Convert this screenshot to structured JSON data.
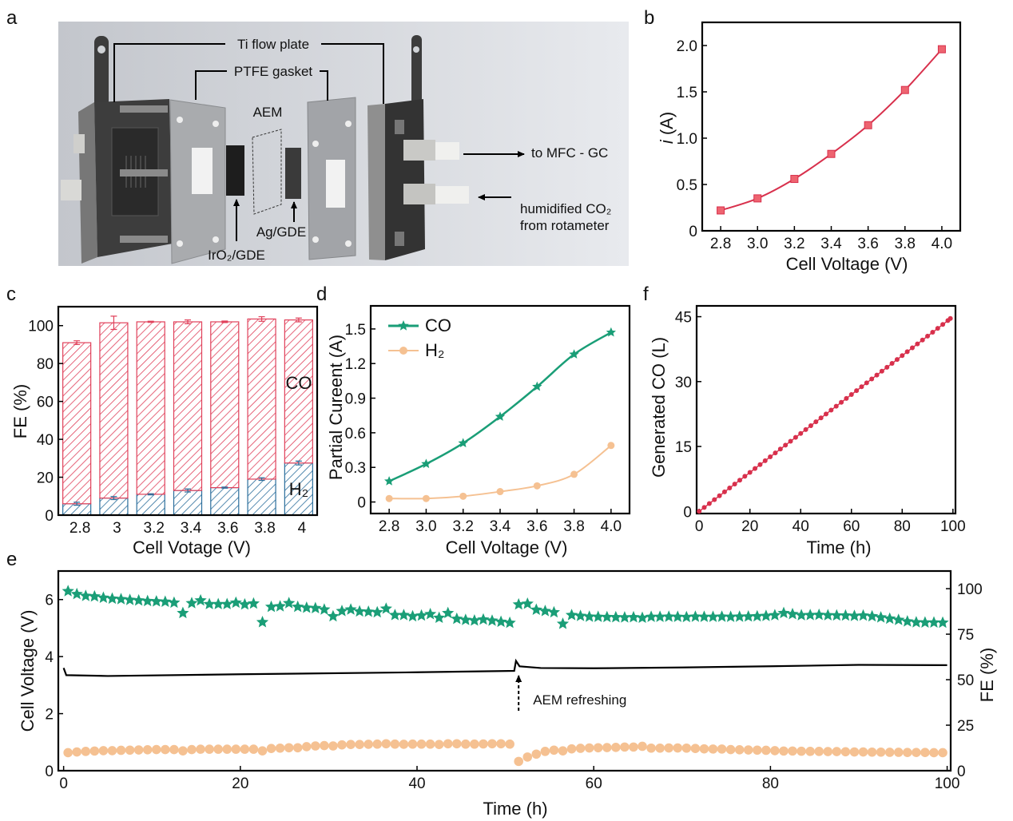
{
  "panel_labels": {
    "a": "a",
    "b": "b",
    "c": "c",
    "d": "d",
    "e": "e",
    "f": "f"
  },
  "diagram": {
    "ti_flow_plate": "Ti flow plate",
    "ptfe_gasket": "PTFE gasket",
    "aem": "AEM",
    "iro2_gde": "IrO₂/GDE",
    "ag_gde": "Ag/GDE",
    "outlet": "to MFC - GC",
    "inlet_line1": "humidified CO₂",
    "inlet_line2": "from rotameter"
  },
  "colors": {
    "current": "#d8304c",
    "co": "#1a9e77",
    "h2": "#f5c192",
    "co_bar": "#e0405a",
    "h2_bar": "#2b6e9c",
    "voltage": "#000000",
    "diagram_bg": "#d5d8dd"
  },
  "chart_data": [
    {
      "id": "b",
      "type": "line",
      "marker": "square",
      "x": [
        2.8,
        3.0,
        3.2,
        3.4,
        3.6,
        3.8,
        4.0
      ],
      "y": [
        0.22,
        0.35,
        0.56,
        0.83,
        1.14,
        1.52,
        1.96
      ],
      "xlabel": "Cell Voltage (V)",
      "ylabel_italic": "i",
      "ylabel": " (A)",
      "xlim": [
        2.7,
        4.1
      ],
      "ylim": [
        0,
        2.25
      ],
      "xticks": [
        2.8,
        3.0,
        3.2,
        3.4,
        3.6,
        3.8,
        4.0
      ],
      "xtick_labels": [
        "2.8",
        "3.0",
        "3.2",
        "3.4",
        "3.6",
        "3.8",
        "4.0"
      ],
      "yticks": [
        0,
        0.5,
        1.0,
        1.5,
        2.0
      ],
      "ytick_labels": [
        "0",
        "0.5",
        "1.0",
        "1.5",
        "2.0"
      ],
      "grid": false
    },
    {
      "id": "c",
      "type": "bar",
      "stacked": true,
      "hatched": true,
      "categories": [
        "2.8",
        "3",
        "3.2",
        "3.4",
        "3.6",
        "3.8",
        "4"
      ],
      "series": [
        {
          "name": "H₂",
          "values": [
            6,
            9,
            11,
            13,
            14.5,
            19,
            27.5
          ],
          "errors": [
            0.8,
            0.8,
            0.3,
            0.8,
            0.3,
            0.7,
            1.0
          ]
        },
        {
          "name": "CO",
          "values": [
            85,
            92.5,
            91,
            89,
            87.5,
            84.5,
            75.5
          ],
          "errors": [
            1.0,
            3.5,
            0.3,
            1.0,
            0.4,
            1.2,
            1.0
          ]
        }
      ],
      "xlabel": "Cell Votage (V)",
      "ylabel": "FE (%)",
      "ylim": [
        0,
        110
      ],
      "yticks": [
        0,
        20,
        40,
        60,
        80,
        100
      ],
      "ytick_labels": [
        "0",
        "20",
        "40",
        "60",
        "80",
        "100"
      ],
      "grid": false
    },
    {
      "id": "d",
      "type": "line",
      "x": [
        2.8,
        3.0,
        3.2,
        3.4,
        3.6,
        3.8,
        4.0
      ],
      "series": [
        {
          "name": "CO",
          "marker": "star",
          "values": [
            0.18,
            0.33,
            0.51,
            0.74,
            1.0,
            1.28,
            1.47
          ]
        },
        {
          "name": "H₂",
          "marker": "circle",
          "values": [
            0.03,
            0.03,
            0.05,
            0.09,
            0.14,
            0.24,
            0.49
          ]
        }
      ],
      "xlabel": "Cell Voltage (V)",
      "ylabel": "Partial Cureent (A)",
      "xlim": [
        2.7,
        4.1
      ],
      "ylim": [
        -0.1,
        1.7
      ],
      "xticks": [
        2.8,
        3.0,
        3.2,
        3.4,
        3.6,
        3.8,
        4.0
      ],
      "xtick_labels": [
        "2.8",
        "3.0",
        "3.2",
        "3.4",
        "3.6",
        "3.8",
        "4.0"
      ],
      "yticks": [
        0,
        0.3,
        0.6,
        0.9,
        1.2,
        1.5
      ],
      "ytick_labels": [
        "0",
        "0.3",
        "0.6",
        "0.9",
        "1.2",
        "1.5"
      ],
      "legend": "top-left",
      "grid": false
    },
    {
      "id": "f",
      "type": "scatter",
      "connected": true,
      "x": [
        0,
        2,
        4,
        6,
        8,
        10,
        12,
        14,
        16,
        18,
        20,
        22,
        24,
        26,
        28,
        30,
        32,
        34,
        36,
        38,
        40,
        42,
        44,
        46,
        48,
        50,
        52,
        54,
        56,
        58,
        60,
        62,
        64,
        66,
        68,
        70,
        72,
        74,
        76,
        78,
        80,
        82,
        84,
        86,
        88,
        90,
        92,
        94,
        96,
        98,
        99
      ],
      "y": [
        0,
        0.9,
        1.8,
        2.7,
        3.6,
        4.5,
        5.4,
        6.3,
        7.2,
        8.1,
        9.0,
        9.9,
        10.8,
        11.7,
        12.6,
        13.5,
        14.4,
        15.3,
        16.2,
        17.1,
        18.0,
        18.9,
        19.8,
        20.7,
        21.6,
        22.5,
        23.4,
        24.3,
        25.2,
        26.1,
        27.0,
        27.9,
        28.8,
        29.7,
        30.6,
        31.5,
        32.4,
        33.3,
        34.2,
        35.1,
        36.0,
        36.9,
        37.8,
        38.7,
        39.6,
        40.5,
        41.4,
        42.3,
        43.2,
        44.1,
        44.6
      ],
      "xlabel": "Time (h)",
      "ylabel": "Generated CO (L)",
      "xlim": [
        -1,
        101
      ],
      "ylim": [
        -0.5,
        47.5
      ],
      "xticks": [
        0,
        20,
        40,
        60,
        80,
        100
      ],
      "xtick_labels": [
        "0",
        "20",
        "40",
        "60",
        "80",
        "100"
      ],
      "yticks": [
        0,
        15,
        30,
        45
      ],
      "ytick_labels": [
        "0",
        "15",
        "30",
        "45"
      ],
      "grid": false
    },
    {
      "id": "e",
      "type": "line+scatter",
      "dual_axis": true,
      "voltage": {
        "time_h": [
          0,
          0.3,
          5,
          20,
          40,
          51,
          51.2,
          51.6,
          54,
          60,
          70,
          80,
          90,
          100
        ],
        "values": [
          3.6,
          3.35,
          3.32,
          3.38,
          3.45,
          3.5,
          3.85,
          3.66,
          3.6,
          3.59,
          3.62,
          3.66,
          3.71,
          3.7
        ]
      },
      "time_h": [
        0.5,
        1.5,
        2.5,
        3.5,
        4.5,
        5.5,
        6.5,
        7.5,
        8.5,
        9.5,
        10.5,
        11.5,
        12.5,
        13.5,
        14.5,
        15.5,
        16.5,
        17.5,
        18.5,
        19.5,
        20.5,
        21.5,
        22.5,
        23.5,
        24.5,
        25.5,
        26.5,
        27.5,
        28.5,
        29.5,
        30.5,
        31.5,
        32.5,
        33.5,
        34.5,
        35.5,
        36.5,
        37.5,
        38.5,
        39.5,
        40.5,
        41.5,
        42.5,
        43.5,
        44.5,
        45.5,
        46.5,
        47.5,
        48.5,
        49.5,
        50.5,
        51.5,
        52.5,
        53.5,
        54.5,
        55.5,
        56.5,
        57.5,
        58.5,
        59.5,
        60.5,
        61.5,
        62.5,
        63.5,
        64.5,
        65.5,
        66.5,
        67.5,
        68.5,
        69.5,
        70.5,
        71.5,
        72.5,
        73.5,
        74.5,
        75.5,
        76.5,
        77.5,
        78.5,
        79.5,
        80.5,
        81.5,
        82.5,
        83.5,
        84.5,
        85.5,
        86.5,
        87.5,
        88.5,
        89.5,
        90.5,
        91.5,
        92.5,
        93.5,
        94.5,
        95.5,
        96.5,
        97.5,
        98.5,
        99.5
      ],
      "fe_co": [
        98.6,
        97,
        96,
        95.7,
        95,
        94.5,
        94.2,
        93.8,
        93.5,
        93.2,
        93,
        92.8,
        92.3,
        86.6,
        92,
        93.5,
        91.5,
        91.5,
        91.5,
        92.3,
        91.3,
        91.8,
        81.6,
        90,
        90.3,
        92,
        90,
        89.5,
        89.3,
        88.5,
        84.8,
        87.7,
        88.5,
        87.5,
        87.3,
        87,
        89,
        85.5,
        85.5,
        84.8,
        85.2,
        86,
        84,
        86.6,
        83.4,
        82.8,
        82.5,
        83,
        82.4,
        81.8,
        81.2,
        91.3,
        91.7,
        88.4,
        87.7,
        87,
        80.7,
        85.5,
        85,
        84.6,
        84.5,
        84.4,
        84.3,
        84.2,
        84.3,
        84,
        84.5,
        84.5,
        84.6,
        84.5,
        84.4,
        84.6,
        84.5,
        84.5,
        84.6,
        84.5,
        84.6,
        84.7,
        84.8,
        85,
        85.4,
        86.6,
        86,
        85.4,
        85.5,
        85.6,
        85.4,
        85.3,
        85.2,
        85,
        85.2,
        84.8,
        84.2,
        83.5,
        82.8,
        82,
        81.5,
        81.4,
        81.4,
        81.3
      ],
      "fe_h2": [
        9.9,
        10.3,
        10.6,
        10.8,
        11,
        11,
        11.2,
        11.3,
        11.4,
        11.5,
        11.6,
        11.6,
        11.6,
        10.9,
        11.6,
        11.8,
        11.8,
        11.8,
        11.8,
        11.8,
        11.8,
        11.8,
        10.9,
        12.2,
        12.4,
        12.6,
        12.6,
        13.2,
        13.6,
        13.8,
        13.6,
        14.2,
        14.4,
        14.4,
        14.5,
        14.6,
        14.8,
        14.6,
        14.5,
        14.6,
        14.6,
        14.6,
        14.4,
        14.8,
        14.8,
        14.6,
        14.6,
        14.7,
        14.8,
        14.8,
        14.6,
        5.1,
        7.5,
        9.1,
        10.6,
        11.3,
        10.9,
        12,
        12.3,
        12.5,
        12.6,
        12.7,
        12.8,
        13,
        13,
        13.4,
        12.4,
        12.4,
        12.5,
        12.5,
        12.4,
        12.2,
        12,
        11.9,
        11.9,
        11.6,
        11.5,
        11.4,
        11.3,
        11.2,
        11,
        10.8,
        10.8,
        10.7,
        10.6,
        10.6,
        10.5,
        10.5,
        10.4,
        10.3,
        10.3,
        10.2,
        10.2,
        10.1,
        10.1,
        10,
        10,
        10,
        9.9,
        9.9
      ],
      "annotation": {
        "text": "AEM refreshing",
        "time_h": 51.5
      },
      "xlabel": "Time (h)",
      "ylabel_left": "Cell Voltage (V)",
      "ylabel_right": "FE (%)",
      "xlim": [
        -0.6,
        100.4
      ],
      "ylim_left": [
        0,
        7
      ],
      "ylim_right": [
        0,
        109.7
      ],
      "xticks": [
        0,
        20,
        40,
        60,
        80,
        100
      ],
      "xtick_labels": [
        "0",
        "20",
        "40",
        "60",
        "80",
        "100"
      ],
      "yticks_left": [
        0,
        2,
        4,
        6
      ],
      "ytick_labels_left": [
        "0",
        "2",
        "4",
        "6"
      ],
      "yticks_right": [
        0,
        25,
        50,
        75,
        100
      ],
      "ytick_labels_right": [
        "0",
        "25",
        "50",
        "75",
        "100"
      ],
      "grid": false
    }
  ]
}
